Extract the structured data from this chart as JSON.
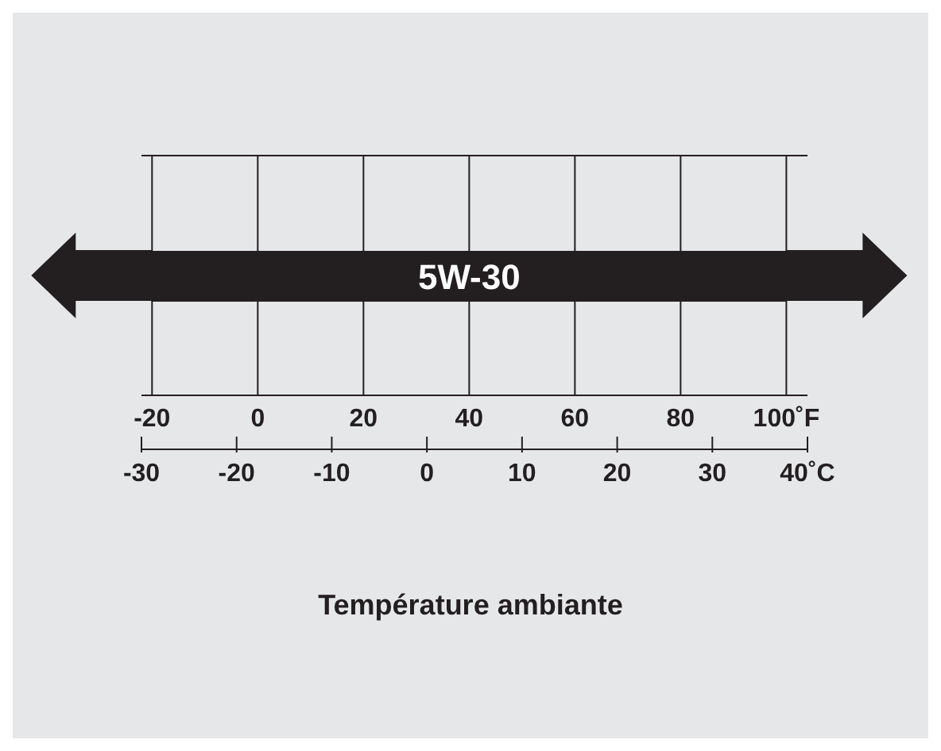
{
  "chart_data": {
    "type": "bar",
    "orientation": "horizontal",
    "categories": [
      "5W-30"
    ],
    "base": [
      -20
    ],
    "values": [
      120
    ],
    "color": "#231f20",
    "xlim": [
      -22,
      104
    ],
    "xticks": [
      -20,
      0,
      20,
      40,
      60,
      80,
      {
        "value": 100,
        "label": "100˚F"
      }
    ],
    "x2lim": [
      -30,
      40
    ],
    "x2ticks": [
      -30,
      -20,
      -10,
      0,
      10,
      20,
      30,
      {
        "value": 40,
        "label": "40˚C"
      }
    ],
    "xlabel": "Température ambiante",
    "grid": "x",
    "tick_labels": "x"
  }
}
